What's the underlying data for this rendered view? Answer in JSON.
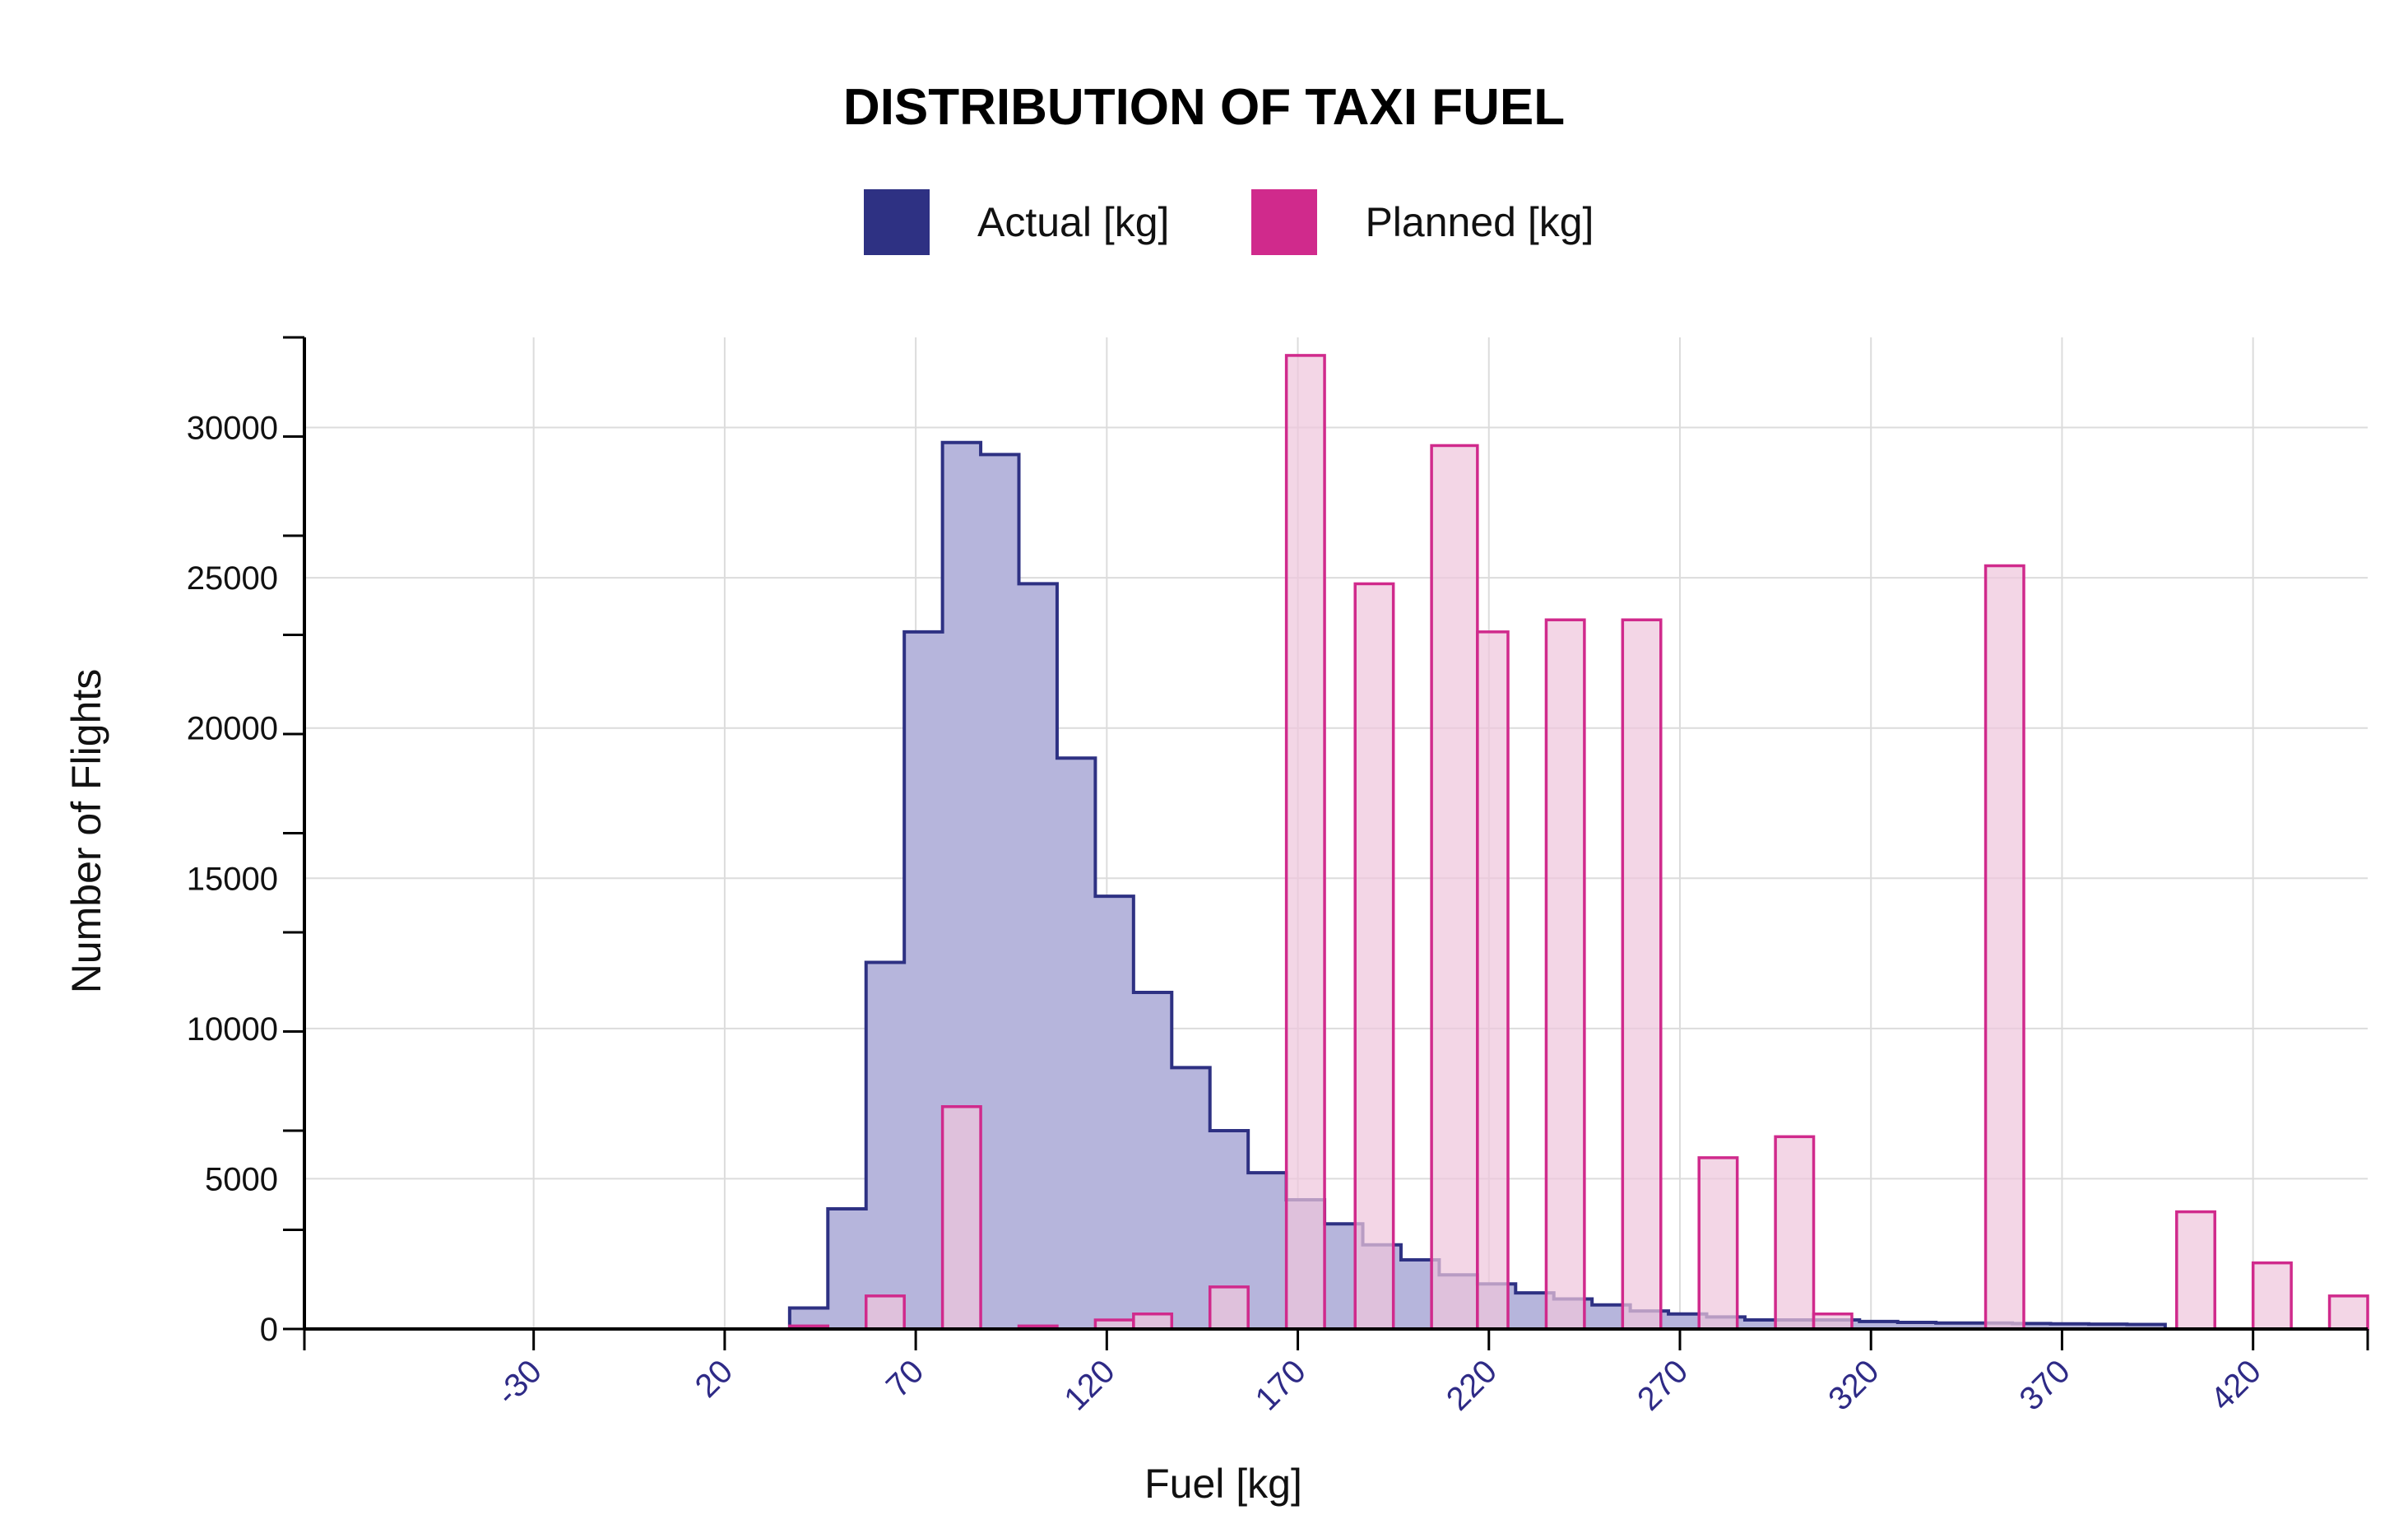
{
  "chart_data": {
    "type": "histogram",
    "title": "DISTRIBUTION OF TAXI FUEL",
    "xlabel": "Fuel [kg]",
    "ylabel": "Number of Flights",
    "xlim": [
      -90,
      450
    ],
    "ylim": [
      0,
      33000
    ],
    "x_ticks": [
      -30,
      20,
      70,
      120,
      170,
      220,
      270,
      320,
      370,
      420
    ],
    "x_tick_labels": [
      "-30",
      "20",
      "70",
      "120",
      "170",
      "220",
      "270",
      "320",
      "370",
      "420"
    ],
    "y_ticks": [
      0,
      5000,
      10000,
      15000,
      20000,
      25000,
      30000
    ],
    "y_tick_labels": [
      "0",
      "5000",
      "10000",
      "15000",
      "20000",
      "25000",
      "30000"
    ],
    "grid": true,
    "legend_position": "top-center",
    "series": [
      {
        "name": "Actual [kg]",
        "color": "#2e3183",
        "fill": "#b6b5dc",
        "style": "step-filled",
        "bin_edges": [
          37,
          47,
          57,
          67,
          77,
          87,
          97,
          107,
          117,
          127,
          137,
          147,
          157,
          167,
          177,
          187,
          197,
          207,
          217,
          227,
          237,
          247,
          257,
          267,
          277,
          287,
          297,
          307,
          317,
          327,
          337,
          347,
          357,
          367,
          377,
          387,
          397
        ],
        "values": [
          700,
          4000,
          12200,
          23200,
          29500,
          29100,
          24800,
          19000,
          14400,
          11200,
          8700,
          6600,
          5200,
          4300,
          3500,
          2800,
          2300,
          1800,
          1500,
          1200,
          1000,
          800,
          600,
          500,
          400,
          300,
          300,
          300,
          250,
          220,
          200,
          200,
          180,
          170,
          160,
          150
        ]
      },
      {
        "name": "Planned [kg]",
        "color": "#d02a8c",
        "fill": "#efc6dd",
        "style": "bars",
        "bars": [
          {
            "x0": 37,
            "x1": 47,
            "value": 100
          },
          {
            "x0": 57,
            "x1": 67,
            "value": 1100
          },
          {
            "x0": 77,
            "x1": 87,
            "value": 7400
          },
          {
            "x0": 97,
            "x1": 107,
            "value": 100
          },
          {
            "x0": 117,
            "x1": 127,
            "value": 300
          },
          {
            "x0": 127,
            "x1": 137,
            "value": 500
          },
          {
            "x0": 147,
            "x1": 157,
            "value": 1400
          },
          {
            "x0": 167,
            "x1": 177,
            "value": 32400
          },
          {
            "x0": 185,
            "x1": 195,
            "value": 24800
          },
          {
            "x0": 205,
            "x1": 217,
            "value": 29400
          },
          {
            "x0": 217,
            "x1": 225,
            "value": 23200
          },
          {
            "x0": 235,
            "x1": 245,
            "value": 23600
          },
          {
            "x0": 255,
            "x1": 265,
            "value": 23600
          },
          {
            "x0": 275,
            "x1": 285,
            "value": 5700
          },
          {
            "x0": 295,
            "x1": 305,
            "value": 6400
          },
          {
            "x0": 305,
            "x1": 315,
            "value": 500
          },
          {
            "x0": 350,
            "x1": 360,
            "value": 25400
          },
          {
            "x0": 400,
            "x1": 410,
            "value": 3900
          },
          {
            "x0": 420,
            "x1": 430,
            "value": 2200
          },
          {
            "x0": 440,
            "x1": 450,
            "value": 1100
          }
        ]
      }
    ]
  }
}
